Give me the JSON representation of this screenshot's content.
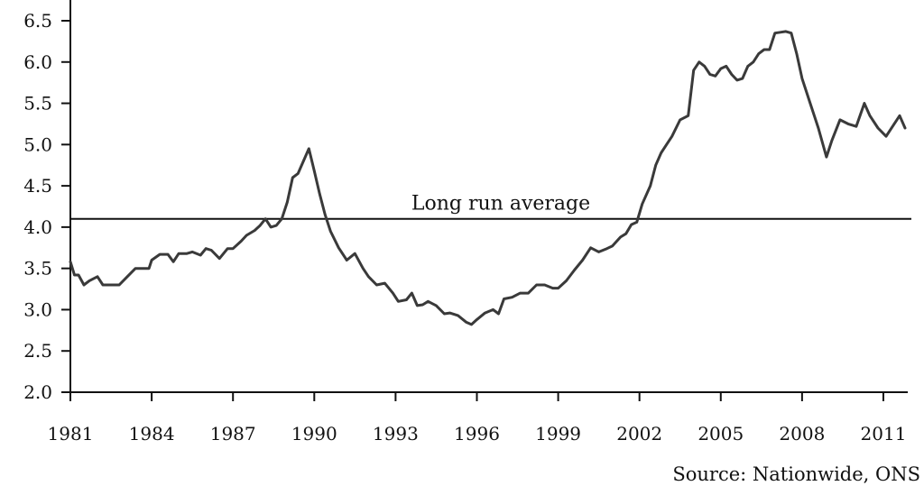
{
  "chart_data": {
    "type": "line",
    "title": "",
    "xlabel": "",
    "ylabel": "",
    "xlim": [
      1981.0,
      2011.9
    ],
    "ylim": [
      2.0,
      6.5
    ],
    "y_ticks": [
      "2.0",
      "2.5",
      "3.0",
      "3.5",
      "4.0",
      "4.5",
      "5.0",
      "5.5",
      "6.0",
      "6.5"
    ],
    "x_ticks": [
      "1981",
      "1984",
      "1987",
      "1990",
      "1993",
      "1996",
      "1999",
      "2002",
      "2005",
      "2008",
      "2011"
    ],
    "grid": false,
    "reference_line": {
      "label": "Long run average",
      "value": 4.1
    },
    "source": "Source: Nationwide, ONS",
    "line_color": "#3a3a3a",
    "series": [
      {
        "x": [
          1981.0,
          1981.15,
          1981.3,
          1981.5,
          1981.7,
          1982.0,
          1982.2,
          1982.5,
          1982.8,
          1983.1,
          1983.4,
          1983.7,
          1983.9,
          1984.0,
          1984.3,
          1984.6,
          1984.8,
          1985.0,
          1985.3,
          1985.5,
          1985.8,
          1986.0,
          1986.2,
          1986.5,
          1986.8,
          1987.0,
          1987.3,
          1987.5,
          1987.8,
          1988.0,
          1988.2,
          1988.4,
          1988.6,
          1988.8,
          1989.0,
          1989.2,
          1989.4,
          1989.6,
          1989.8,
          1990.0,
          1990.2,
          1990.4,
          1990.6,
          1990.9,
          1991.2,
          1991.5,
          1991.8,
          1992.0,
          1992.3,
          1992.6,
          1992.9,
          1993.1,
          1993.4,
          1993.6,
          1993.8,
          1994.0,
          1994.2,
          1994.5,
          1994.8,
          1995.0,
          1995.3,
          1995.6,
          1995.8,
          1996.0,
          1996.3,
          1996.6,
          1996.8,
          1997.0,
          1997.3,
          1997.6,
          1997.9,
          1998.2,
          1998.5,
          1998.8,
          1999.0,
          1999.3,
          1999.6,
          1999.9,
          2000.2,
          2000.5,
          2000.8,
          2001.0,
          2001.3,
          2001.5,
          2001.7,
          2001.9,
          2002.1,
          2002.4,
          2002.6,
          2002.8,
          2003.0,
          2003.2,
          2003.5,
          2003.8,
          2004.0,
          2004.2,
          2004.4,
          2004.6,
          2004.8,
          2005.0,
          2005.2,
          2005.4,
          2005.6,
          2005.8,
          2006.0,
          2006.2,
          2006.4,
          2006.6,
          2006.8,
          2007.0,
          2007.2,
          2007.4,
          2007.6,
          2007.8,
          2008.0,
          2008.3,
          2008.6,
          2008.9,
          2009.1,
          2009.4,
          2009.7,
          2010.0,
          2010.3,
          2010.5,
          2010.8,
          2011.1,
          2011.4,
          2011.6,
          2011.8
        ],
        "values": [
          3.58,
          3.42,
          3.42,
          3.3,
          3.35,
          3.4,
          3.3,
          3.3,
          3.3,
          3.4,
          3.5,
          3.5,
          3.5,
          3.6,
          3.67,
          3.67,
          3.58,
          3.68,
          3.68,
          3.7,
          3.66,
          3.74,
          3.72,
          3.62,
          3.74,
          3.74,
          3.83,
          3.9,
          3.96,
          4.02,
          4.1,
          4.0,
          4.02,
          4.1,
          4.3,
          4.6,
          4.65,
          4.8,
          4.95,
          4.68,
          4.4,
          4.15,
          3.95,
          3.75,
          3.6,
          3.68,
          3.5,
          3.4,
          3.3,
          3.32,
          3.2,
          3.1,
          3.12,
          3.2,
          3.05,
          3.06,
          3.1,
          3.05,
          2.95,
          2.96,
          2.93,
          2.85,
          2.82,
          2.88,
          2.96,
          3.0,
          2.95,
          3.13,
          3.15,
          3.2,
          3.2,
          3.3,
          3.3,
          3.26,
          3.26,
          3.35,
          3.48,
          3.6,
          3.75,
          3.7,
          3.74,
          3.77,
          3.88,
          3.92,
          4.03,
          4.06,
          4.28,
          4.5,
          4.75,
          4.9,
          5.0,
          5.1,
          5.3,
          5.35,
          5.9,
          6.0,
          5.95,
          5.85,
          5.83,
          5.92,
          5.95,
          5.85,
          5.78,
          5.8,
          5.95,
          6.0,
          6.1,
          6.15,
          6.15,
          6.35,
          6.36,
          6.37,
          6.35,
          6.1,
          5.8,
          5.5,
          5.2,
          4.85,
          5.05,
          5.3,
          5.25,
          5.22,
          5.5,
          5.35,
          5.2,
          5.1,
          5.25,
          5.35,
          5.2
        ]
      }
    ]
  }
}
